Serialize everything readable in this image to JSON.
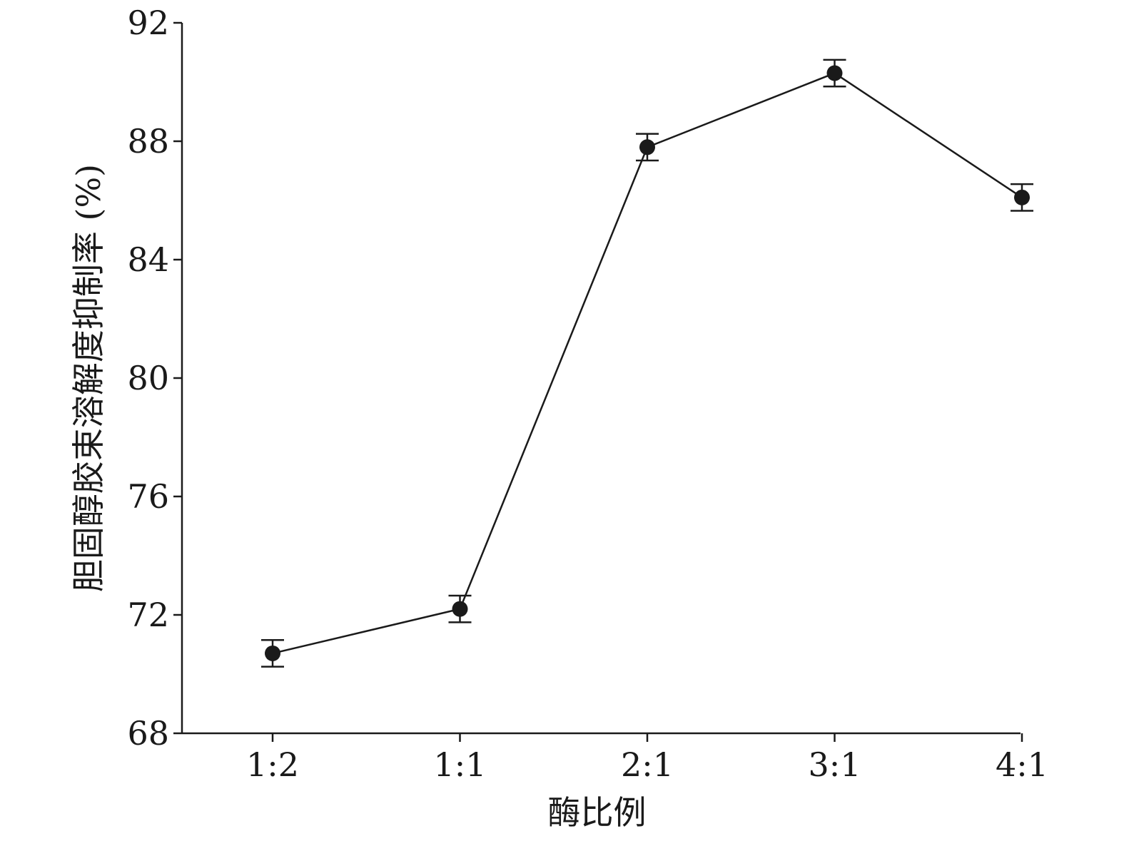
{
  "chart_data": {
    "type": "line",
    "title": "",
    "xlabel": "酶比例",
    "ylabel": "胆固醇胶束溶解度抑制率 (%)",
    "categories": [
      "1:2",
      "1:1",
      "2:1",
      "3:1",
      "4:1"
    ],
    "series": [
      {
        "values": [
          70.7,
          72.2,
          87.8,
          90.3,
          86.1
        ],
        "errors": [
          0.45,
          0.45,
          0.45,
          0.45,
          0.45
        ]
      }
    ],
    "ylim": [
      68,
      92
    ],
    "yticks": [
      "68",
      "72",
      "76",
      "80",
      "84",
      "88",
      "92"
    ],
    "grid": false,
    "colors": {
      "line": "#1a1a1a",
      "marker": "#1a1a1a",
      "axis": "#1a1a1a"
    }
  }
}
